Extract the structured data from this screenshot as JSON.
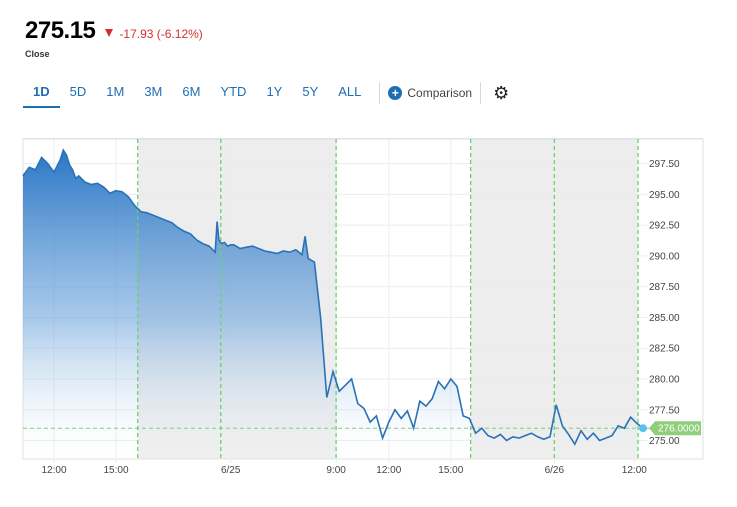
{
  "quote": {
    "price": "275.15",
    "change": "-17.93 (-6.12%)",
    "close_label": "Close",
    "down_color": "#d32f2f"
  },
  "tabs": [
    {
      "label": "1D",
      "active": true
    },
    {
      "label": "5D",
      "active": false
    },
    {
      "label": "1M",
      "active": false
    },
    {
      "label": "3M",
      "active": false
    },
    {
      "label": "6M",
      "active": false
    },
    {
      "label": "YTD",
      "active": false
    },
    {
      "label": "1Y",
      "active": false
    },
    {
      "label": "5Y",
      "active": false
    },
    {
      "label": "ALL",
      "active": false
    }
  ],
  "comparison_label": "Comparison",
  "settings_icon": "gear-icon",
  "colors": {
    "accent": "#1e6eb4",
    "line": "#2a72b5",
    "session_marker": "#6bd36b",
    "last_price_tag": "#8fce7a"
  },
  "chart_data": {
    "type": "area",
    "x": [
      0,
      1,
      2,
      3,
      4,
      5,
      6,
      6.5,
      7,
      7.5,
      8,
      8.5,
      9,
      10,
      11,
      12,
      13,
      14,
      15,
      16,
      17,
      18,
      19,
      20,
      21,
      22,
      23,
      24,
      25,
      26,
      27,
      28,
      29,
      30,
      31,
      31.3,
      31.6,
      32,
      32.5,
      33,
      33.5,
      34,
      35,
      36,
      37,
      38,
      39,
      40,
      41,
      42,
      43,
      44,
      45,
      45.5,
      46,
      47,
      48,
      49,
      50,
      51,
      52,
      53,
      54,
      55,
      56,
      57,
      58
    ],
    "y": [
      296.5,
      297.2,
      297.0,
      298.0,
      297.5,
      296.8,
      297.8,
      298.6,
      298.2,
      297.4,
      297.0,
      296.3,
      296.5,
      296.0,
      295.8,
      295.9,
      295.6,
      295.1,
      295.3,
      295.2,
      294.8,
      294.1,
      293.6,
      293.5,
      293.3,
      293.1,
      292.9,
      292.7,
      292.3,
      292.0,
      291.8,
      291.3,
      291.0,
      290.8,
      290.3,
      292.8,
      291.3,
      291.0,
      291.1,
      290.8,
      290.9,
      290.9,
      290.6,
      290.7,
      290.8,
      290.6,
      290.4,
      290.3,
      290.2,
      290.4,
      290.3,
      290.5,
      290.1,
      291.6,
      289.8,
      289.5,
      285.0,
      278.5,
      280.6,
      279.0,
      279.5,
      280.0,
      278.0,
      277.6,
      276.5,
      277.0,
      275.2
    ],
    "x2": [
      58,
      59,
      60,
      61,
      62,
      63,
      64,
      65,
      66,
      67,
      68,
      69,
      70,
      71,
      72,
      73,
      74,
      75,
      76,
      77,
      78,
      79,
      80,
      81,
      82,
      83,
      84,
      85,
      86,
      87,
      88,
      89,
      90,
      91,
      92,
      93,
      94,
      95,
      96,
      97,
      98,
      99,
      100
    ],
    "y2": [
      275.2,
      276.5,
      277.5,
      276.8,
      277.4,
      276.0,
      278.2,
      277.8,
      278.4,
      279.8,
      279.2,
      280.0,
      279.4,
      277.0,
      276.8,
      275.6,
      276.0,
      275.4,
      275.2,
      275.5,
      275.0,
      275.3,
      275.2,
      275.4,
      275.6,
      275.3,
      275.1,
      275.3,
      277.9,
      276.2,
      275.5,
      274.7,
      275.8,
      275.1,
      275.6,
      275.0,
      275.2,
      275.4,
      276.2,
      276.0,
      276.9,
      276.4,
      276.0
    ],
    "ylim": [
      273.5,
      299.5
    ],
    "y_ticks": [
      "275.00",
      "277.50",
      "280.00",
      "282.50",
      "285.00",
      "287.50",
      "290.00",
      "292.50",
      "295.00",
      "297.50"
    ],
    "x_ticks": [
      "12:00",
      "15:00",
      "6/25",
      "9:00",
      "12:00",
      "15:00",
      "6/26",
      "12:00"
    ],
    "last_price": "276.0000",
    "grid": true
  }
}
